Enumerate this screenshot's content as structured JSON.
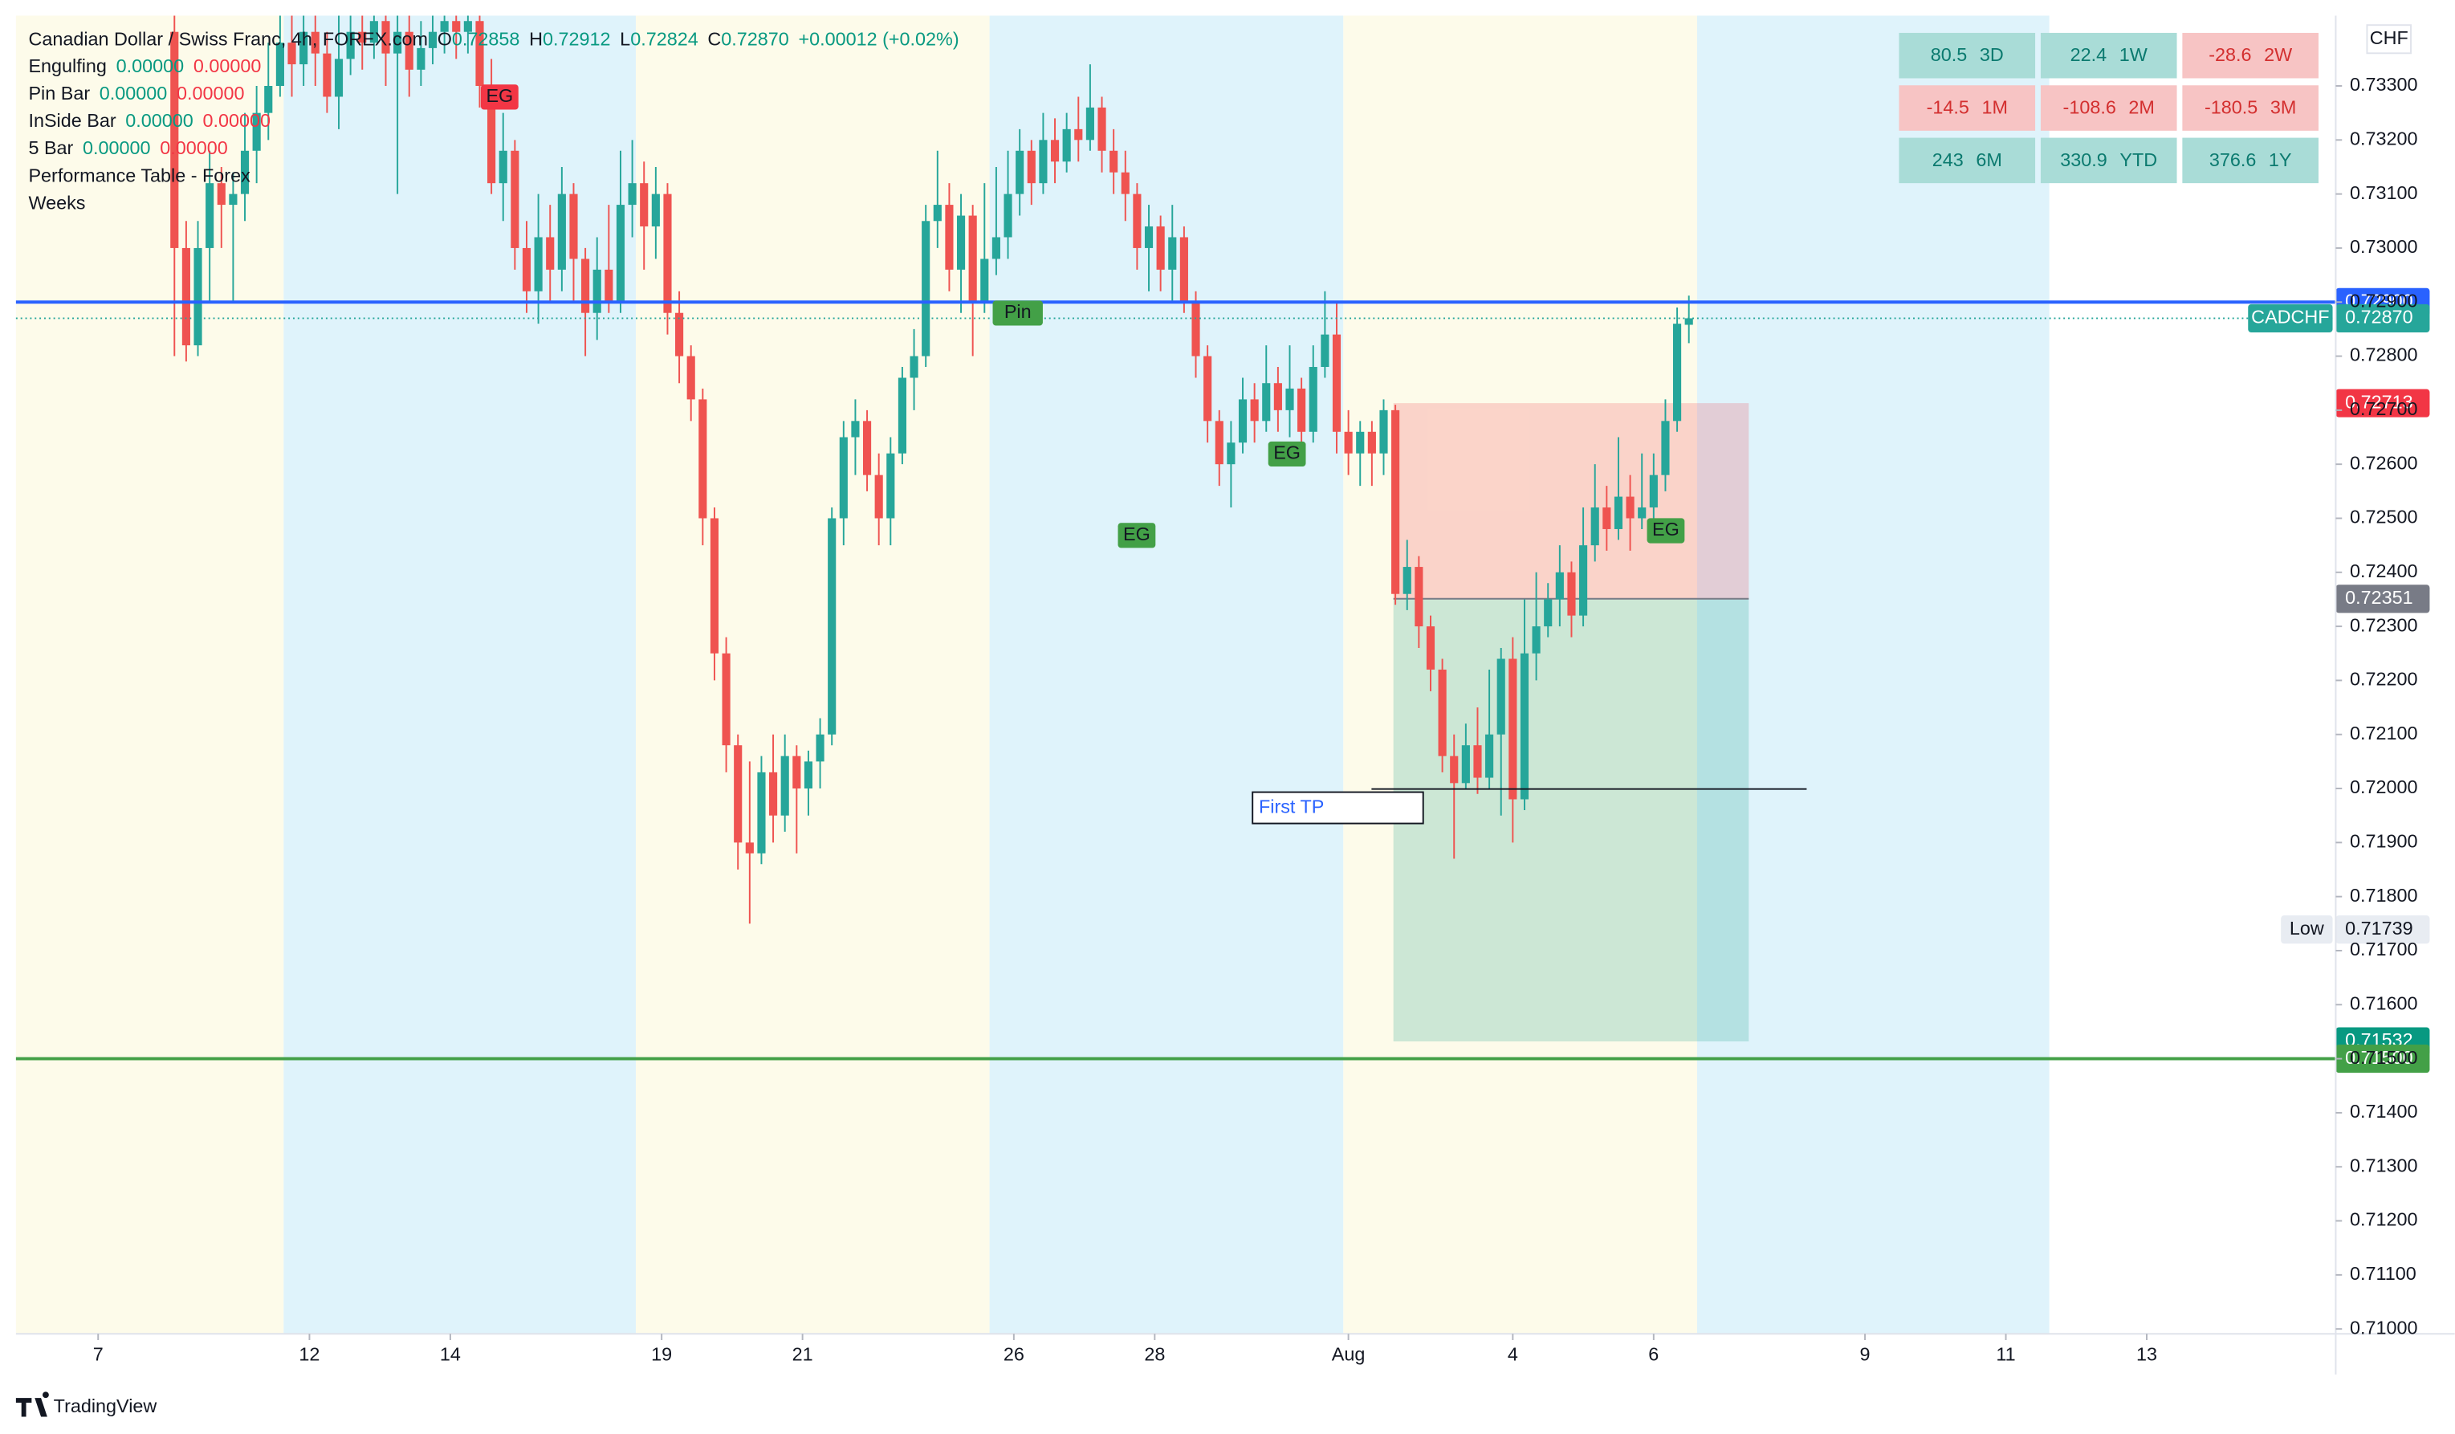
{
  "chart_data": {
    "type": "candlestick",
    "title": "Canadian Dollar / Swiss Franc, 4h, FOREX.com",
    "ohlc_header": {
      "open_label": "O",
      "open": "0.72858",
      "high_label": "H",
      "high": "0.72912",
      "low_label": "L",
      "low": "0.72824",
      "close_label": "C",
      "close": "0.72870",
      "change": "+0.00012 (+0.02%)"
    },
    "indicators": [
      {
        "name": "Engulfing",
        "values": [
          "0.00000",
          "0.00000"
        ]
      },
      {
        "name": "Pin Bar",
        "values": [
          "0.00000",
          "0.00000"
        ]
      },
      {
        "name": "InSide Bar",
        "values": [
          "0.00000",
          "0.00000"
        ]
      },
      {
        "name": "5 Bar",
        "values": [
          "0.00000",
          "0.00000"
        ]
      },
      {
        "name": "Performance Table - Forex",
        "values": []
      },
      {
        "name": "Weeks",
        "values": []
      }
    ],
    "currency": "CHF",
    "up_color": "#26a69a",
    "down_color": "#ef5350",
    "ylim": [
      0.70991,
      0.7343
    ],
    "yticks": [
      {
        "value": 0.71,
        "label": "0.71000"
      },
      {
        "value": 0.711,
        "label": "0.71100"
      },
      {
        "value": 0.712,
        "label": "0.71200"
      },
      {
        "value": 0.713,
        "label": "0.71300"
      },
      {
        "value": 0.714,
        "label": "0.71400"
      },
      {
        "value": 0.715,
        "label": "0.71500"
      },
      {
        "value": 0.716,
        "label": "0.71600"
      },
      {
        "value": 0.717,
        "label": "0.71700"
      },
      {
        "value": 0.718,
        "label": "0.71800"
      },
      {
        "value": 0.719,
        "label": "0.71900"
      },
      {
        "value": 0.72,
        "label": "0.72000"
      },
      {
        "value": 0.721,
        "label": "0.72100"
      },
      {
        "value": 0.722,
        "label": "0.72200"
      },
      {
        "value": 0.723,
        "label": "0.72300"
      },
      {
        "value": 0.724,
        "label": "0.72400"
      },
      {
        "value": 0.725,
        "label": "0.72500"
      },
      {
        "value": 0.726,
        "label": "0.72600"
      },
      {
        "value": 0.727,
        "label": "0.72700"
      },
      {
        "value": 0.728,
        "label": "0.72800"
      },
      {
        "value": 0.729,
        "label": "0.72900"
      },
      {
        "value": 0.73,
        "label": "0.73000"
      },
      {
        "value": 0.731,
        "label": "0.73100"
      },
      {
        "value": 0.732,
        "label": "0.73200"
      },
      {
        "value": 0.733,
        "label": "0.73300"
      }
    ],
    "xlim": [
      0,
      197.6
    ],
    "xticks": [
      {
        "value": 7,
        "label": "7"
      },
      {
        "value": 25,
        "label": "12"
      },
      {
        "value": 37,
        "label": "14"
      },
      {
        "value": 55,
        "label": "19"
      },
      {
        "value": 67,
        "label": "21"
      },
      {
        "value": 85,
        "label": "26"
      },
      {
        "value": 97,
        "label": "28"
      },
      {
        "value": 113.5,
        "label": "Aug"
      },
      {
        "value": 127.5,
        "label": "4"
      },
      {
        "value": 139.5,
        "label": "6"
      },
      {
        "value": 157.5,
        "label": "9"
      },
      {
        "value": 169.5,
        "label": "11"
      },
      {
        "value": 181.5,
        "label": "13"
      }
    ],
    "candles": [
      null,
      null,
      null,
      null,
      null,
      null,
      null,
      null,
      null,
      null,
      null,
      null,
      null,
      [
        0.734,
        0.7343,
        0.728,
        0.73
      ],
      [
        0.73,
        0.7305,
        0.7279,
        0.7282
      ],
      [
        0.7282,
        0.7305,
        0.728,
        0.73
      ],
      [
        0.73,
        0.7318,
        0.729,
        0.7312
      ],
      [
        0.7312,
        0.7315,
        0.73,
        0.7308
      ],
      [
        0.7308,
        0.7314,
        0.729,
        0.731
      ],
      [
        0.731,
        0.7325,
        0.7305,
        0.7318
      ],
      [
        0.7318,
        0.733,
        0.7312,
        0.7325
      ],
      [
        0.7325,
        0.7338,
        0.732,
        0.733
      ],
      [
        0.733,
        0.7343,
        0.7328,
        0.7338
      ],
      [
        0.7338,
        0.7343,
        0.7328,
        0.7334
      ],
      [
        0.7334,
        0.7343,
        0.733,
        0.734
      ],
      [
        0.734,
        0.7343,
        0.733,
        0.7336
      ],
      [
        0.7336,
        0.734,
        0.7325,
        0.7328
      ],
      [
        0.7328,
        0.7343,
        0.7322,
        0.7335
      ],
      [
        0.7335,
        0.7343,
        0.7332,
        0.734
      ],
      [
        0.734,
        0.7343,
        0.7333,
        0.7338
      ],
      [
        0.7338,
        0.7343,
        0.7335,
        0.7342
      ],
      [
        0.7342,
        0.7343,
        0.733,
        0.7336
      ],
      [
        0.7336,
        0.7343,
        0.731,
        0.734
      ],
      [
        0.734,
        0.7343,
        0.7328,
        0.7333
      ],
      [
        0.7333,
        0.7342,
        0.733,
        0.7337
      ],
      [
        0.7337,
        0.7343,
        0.7334,
        0.734
      ],
      [
        0.734,
        0.7343,
        0.7336,
        0.7342
      ],
      [
        0.7342,
        0.7343,
        0.7335,
        0.734
      ],
      [
        0.734,
        0.7343,
        0.7336,
        0.7342
      ],
      [
        0.7342,
        0.7343,
        0.7326,
        0.733
      ],
      [
        0.733,
        0.7335,
        0.731,
        0.7312
      ],
      [
        0.7312,
        0.7325,
        0.7305,
        0.7318
      ],
      [
        0.7318,
        0.732,
        0.7296,
        0.73
      ],
      [
        0.73,
        0.7305,
        0.7288,
        0.7292
      ],
      [
        0.7292,
        0.731,
        0.7286,
        0.7302
      ],
      [
        0.7302,
        0.7308,
        0.729,
        0.7296
      ],
      [
        0.7296,
        0.7315,
        0.7292,
        0.731
      ],
      [
        0.731,
        0.7312,
        0.729,
        0.7298
      ],
      [
        0.7298,
        0.73,
        0.728,
        0.7288
      ],
      [
        0.7288,
        0.7302,
        0.7283,
        0.7296
      ],
      [
        0.7296,
        0.7308,
        0.7288,
        0.729
      ],
      [
        0.729,
        0.7318,
        0.7288,
        0.7308
      ],
      [
        0.7308,
        0.732,
        0.7302,
        0.7312
      ],
      [
        0.7312,
        0.7316,
        0.7296,
        0.7304
      ],
      [
        0.7304,
        0.7315,
        0.7298,
        0.731
      ],
      [
        0.731,
        0.7312,
        0.7284,
        0.7288
      ],
      [
        0.7288,
        0.7292,
        0.7275,
        0.728
      ],
      [
        0.728,
        0.7282,
        0.7268,
        0.7272
      ],
      [
        0.7272,
        0.7274,
        0.7245,
        0.725
      ],
      [
        0.725,
        0.7252,
        0.722,
        0.7225
      ],
      [
        0.7225,
        0.7228,
        0.7203,
        0.7208
      ],
      [
        0.7208,
        0.721,
        0.7185,
        0.719
      ],
      [
        0.719,
        0.7205,
        0.7175,
        0.7188
      ],
      [
        0.7188,
        0.7206,
        0.7186,
        0.7203
      ],
      [
        0.7203,
        0.721,
        0.719,
        0.7195
      ],
      [
        0.7195,
        0.721,
        0.7192,
        0.7206
      ],
      [
        0.7206,
        0.7208,
        0.7188,
        0.72
      ],
      [
        0.72,
        0.7207,
        0.7195,
        0.7205
      ],
      [
        0.7205,
        0.7213,
        0.72,
        0.721
      ],
      [
        0.721,
        0.7252,
        0.7208,
        0.725
      ],
      [
        0.725,
        0.7268,
        0.7245,
        0.7265
      ],
      [
        0.7265,
        0.7272,
        0.7258,
        0.7268
      ],
      [
        0.7268,
        0.727,
        0.7255,
        0.7258
      ],
      [
        0.7258,
        0.7262,
        0.7245,
        0.725
      ],
      [
        0.725,
        0.7265,
        0.7245,
        0.7262
      ],
      [
        0.7262,
        0.7278,
        0.726,
        0.7276
      ],
      [
        0.7276,
        0.7285,
        0.727,
        0.728
      ],
      [
        0.728,
        0.7308,
        0.7278,
        0.7305
      ],
      [
        0.7305,
        0.7318,
        0.73,
        0.7308
      ],
      [
        0.7308,
        0.7312,
        0.7292,
        0.7296
      ],
      [
        0.7296,
        0.731,
        0.7288,
        0.7306
      ],
      [
        0.7306,
        0.7308,
        0.728,
        0.729
      ],
      [
        0.729,
        0.7312,
        0.7288,
        0.7298
      ],
      [
        0.7298,
        0.7315,
        0.7295,
        0.7302
      ],
      [
        0.7302,
        0.7318,
        0.7298,
        0.731
      ],
      [
        0.731,
        0.7322,
        0.7306,
        0.7318
      ],
      [
        0.7318,
        0.732,
        0.7308,
        0.7312
      ],
      [
        0.7312,
        0.7325,
        0.731,
        0.732
      ],
      [
        0.732,
        0.7324,
        0.7312,
        0.7316
      ],
      [
        0.7316,
        0.7325,
        0.7314,
        0.7322
      ],
      [
        0.7322,
        0.7328,
        0.7316,
        0.732
      ],
      [
        0.732,
        0.7334,
        0.7318,
        0.7326
      ],
      [
        0.7326,
        0.7328,
        0.7314,
        0.7318
      ],
      [
        0.7318,
        0.7322,
        0.731,
        0.7314
      ],
      [
        0.7314,
        0.7318,
        0.7305,
        0.731
      ],
      [
        0.731,
        0.7312,
        0.7296,
        0.73
      ],
      [
        0.73,
        0.7308,
        0.7292,
        0.7304
      ],
      [
        0.7304,
        0.7306,
        0.7292,
        0.7296
      ],
      [
        0.7296,
        0.7308,
        0.729,
        0.7302
      ],
      [
        0.7302,
        0.7304,
        0.7288,
        0.729
      ],
      [
        0.729,
        0.7292,
        0.7276,
        0.728
      ],
      [
        0.728,
        0.7282,
        0.7264,
        0.7268
      ],
      [
        0.7268,
        0.727,
        0.7256,
        0.726
      ],
      [
        0.726,
        0.7268,
        0.7252,
        0.7264
      ],
      [
        0.7264,
        0.7276,
        0.7262,
        0.7272
      ],
      [
        0.7272,
        0.7275,
        0.7264,
        0.7268
      ],
      [
        0.7268,
        0.7282,
        0.7266,
        0.7275
      ],
      [
        0.7275,
        0.7278,
        0.7266,
        0.727
      ],
      [
        0.727,
        0.7282,
        0.7265,
        0.7274
      ],
      [
        0.7274,
        0.7276,
        0.7262,
        0.7266
      ],
      [
        0.7266,
        0.7282,
        0.7264,
        0.7278
      ],
      [
        0.7278,
        0.7292,
        0.7276,
        0.7284
      ],
      [
        0.7284,
        0.729,
        0.7262,
        0.7266
      ],
      [
        0.7266,
        0.727,
        0.7258,
        0.7262
      ],
      [
        0.7262,
        0.7268,
        0.7256,
        0.7266
      ],
      [
        0.7266,
        0.7268,
        0.7256,
        0.7262
      ],
      [
        0.7262,
        0.7272,
        0.7258,
        0.727
      ],
      [
        0.727,
        0.7271,
        0.7234,
        0.7236
      ],
      [
        0.7236,
        0.7246,
        0.7233,
        0.7241
      ],
      [
        0.7241,
        0.7243,
        0.7226,
        0.723
      ],
      [
        0.723,
        0.7232,
        0.7218,
        0.7222
      ],
      [
        0.7222,
        0.7224,
        0.7203,
        0.7206
      ],
      [
        0.7206,
        0.721,
        0.7187,
        0.7201
      ],
      [
        0.7201,
        0.7212,
        0.72,
        0.7208
      ],
      [
        0.7208,
        0.7215,
        0.7199,
        0.7202
      ],
      [
        0.7202,
        0.7222,
        0.72,
        0.721
      ],
      [
        0.721,
        0.7226,
        0.7195,
        0.7224
      ],
      [
        0.7224,
        0.7228,
        0.719,
        0.7198
      ],
      [
        0.7198,
        0.7235,
        0.7196,
        0.7225
      ],
      [
        0.7225,
        0.724,
        0.722,
        0.723
      ],
      [
        0.723,
        0.7238,
        0.7228,
        0.7235
      ],
      [
        0.7235,
        0.7245,
        0.723,
        0.724
      ],
      [
        0.724,
        0.7242,
        0.7228,
        0.7232
      ],
      [
        0.7232,
        0.7252,
        0.723,
        0.7245
      ],
      [
        0.7245,
        0.726,
        0.7242,
        0.7252
      ],
      [
        0.7252,
        0.7256,
        0.7244,
        0.7248
      ],
      [
        0.7248,
        0.7265,
        0.7246,
        0.7254
      ],
      [
        0.7254,
        0.7258,
        0.7244,
        0.725
      ],
      [
        0.725,
        0.7262,
        0.7248,
        0.7252
      ],
      [
        0.7252,
        0.7262,
        0.7248,
        0.7258
      ],
      [
        0.7258,
        0.7272,
        0.7255,
        0.7268
      ],
      [
        0.7268,
        0.7289,
        0.7266,
        0.7286
      ],
      [
        0.72858,
        0.72912,
        0.72824,
        0.7287
      ]
    ],
    "price_lines": [
      {
        "value": 0.729,
        "label": "0.72900",
        "color": "#2962ff"
      },
      {
        "value": 0.7287,
        "label": "0.72870",
        "name": "CADCHF",
        "color": "#26a69a"
      },
      {
        "value": 0.72713,
        "label": "0.72713",
        "color": "#f23645"
      },
      {
        "value": 0.72351,
        "label": "0.72351",
        "color": "#787b86"
      },
      {
        "value": 0.71739,
        "label": "0.71739",
        "name": "Low",
        "color": "#e8ecf2"
      },
      {
        "value": 0.71532,
        "label": "0.71532",
        "color": "#089981"
      },
      {
        "value": 0.715,
        "label": "0.71500",
        "color": "#43a047"
      }
    ],
    "signals": [
      "EG",
      "Pin",
      "EG",
      "EG",
      "EG"
    ],
    "first_tp": "First TP",
    "performance": [
      {
        "value": 80.5,
        "period": "3D"
      },
      {
        "value": 22.4,
        "period": "1W"
      },
      {
        "value": -28.6,
        "period": "2W"
      },
      {
        "value": -14.5,
        "period": "1M"
      },
      {
        "value": -108.6,
        "period": "2M"
      },
      {
        "value": -180.5,
        "period": "3M"
      },
      {
        "value": 243,
        "period": "6M"
      },
      {
        "value": 330.9,
        "period": "YTD"
      },
      {
        "value": 376.6,
        "period": "1Y"
      }
    ],
    "brand": "TradingView"
  }
}
